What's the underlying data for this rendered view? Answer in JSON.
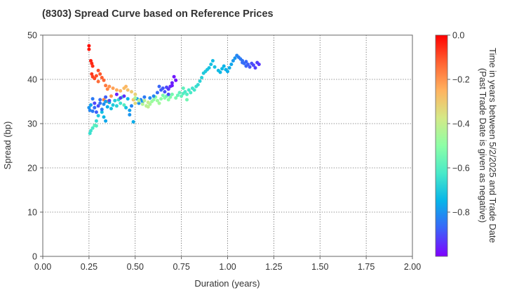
{
  "chart_data": {
    "type": "scatter",
    "title": "(8303)   Spread Curve based on Reference Prices",
    "xlabel": "Duration (years)",
    "ylabel": "Spread (bp)",
    "xlim": [
      0,
      2.0
    ],
    "ylim": [
      0,
      50
    ],
    "x_ticks": [
      "0.00",
      "0.25",
      "0.50",
      "0.75",
      "1.00",
      "1.25",
      "1.50",
      "1.75",
      "2.00"
    ],
    "y_ticks": [
      "0",
      "10",
      "20",
      "30",
      "40",
      "50"
    ],
    "grid": true,
    "colorbar": {
      "label_line1": "Time in years between 5/2/2025 and Trade Date",
      "label_line2": "(Past Trade Date is given as negative)",
      "range": [
        -1.0,
        0.0
      ],
      "ticks": [
        "0.0",
        "−0.2",
        "−0.4",
        "−0.6",
        "−0.8"
      ],
      "tick_values": [
        0.0,
        -0.2,
        -0.4,
        -0.6,
        -0.8
      ],
      "colormap": "rainbow",
      "stops": [
        "#7f00ff",
        "#3b63f9",
        "#07b4e9",
        "#48e9c9",
        "#8cffa6",
        "#d4e987",
        "#ffb360",
        "#ff6332",
        "#ff0000"
      ]
    },
    "points": [
      [
        0.25,
        47.6,
        -0.02
      ],
      [
        0.25,
        46.8,
        -0.03
      ],
      [
        0.26,
        44.2,
        -0.04
      ],
      [
        0.265,
        43.6,
        -0.05
      ],
      [
        0.27,
        43.0,
        -0.06
      ],
      [
        0.265,
        41.2,
        -0.07
      ],
      [
        0.27,
        40.6,
        -0.08
      ],
      [
        0.28,
        40.2,
        -0.09
      ],
      [
        0.29,
        40.8,
        -0.1
      ],
      [
        0.3,
        42.0,
        -0.1
      ],
      [
        0.31,
        41.2,
        -0.11
      ],
      [
        0.32,
        40.4,
        -0.12
      ],
      [
        0.33,
        39.8,
        -0.13
      ],
      [
        0.3,
        39.5,
        -0.14
      ],
      [
        0.34,
        38.6,
        -0.16
      ],
      [
        0.35,
        37.8,
        -0.18
      ],
      [
        0.36,
        38.4,
        -0.2
      ],
      [
        0.38,
        38.0,
        -0.22
      ],
      [
        0.4,
        37.6,
        -0.24
      ],
      [
        0.42,
        37.4,
        -0.25
      ],
      [
        0.44,
        38.0,
        -0.27
      ],
      [
        0.45,
        38.4,
        -0.26
      ],
      [
        0.46,
        37.6,
        -0.28
      ],
      [
        0.48,
        37.2,
        -0.3
      ],
      [
        0.5,
        36.6,
        -0.32
      ],
      [
        0.49,
        35.4,
        -0.3
      ],
      [
        0.5,
        34.6,
        -0.34
      ],
      [
        0.37,
        36.2,
        -0.2
      ],
      [
        0.33,
        35.4,
        -0.17
      ],
      [
        0.35,
        35.0,
        -0.21
      ],
      [
        0.28,
        29.6,
        -0.58
      ],
      [
        0.29,
        29.5,
        -0.6
      ],
      [
        0.27,
        29.0,
        -0.62
      ],
      [
        0.26,
        28.4,
        -0.64
      ],
      [
        0.255,
        27.8,
        -0.65
      ],
      [
        0.29,
        30.6,
        -0.66
      ],
      [
        0.3,
        31.8,
        -0.7
      ],
      [
        0.32,
        32.6,
        -0.72
      ],
      [
        0.33,
        31.5,
        -0.74
      ],
      [
        0.34,
        30.6,
        -0.77
      ],
      [
        0.25,
        33.6,
        -0.8
      ],
      [
        0.255,
        33.0,
        -0.82
      ],
      [
        0.26,
        34.2,
        -0.78
      ],
      [
        0.27,
        32.8,
        -0.84
      ],
      [
        0.28,
        33.6,
        -0.86
      ],
      [
        0.29,
        32.6,
        -0.88
      ],
      [
        0.3,
        34.0,
        -0.9
      ],
      [
        0.31,
        34.6,
        -0.85
      ],
      [
        0.32,
        33.2,
        -0.83
      ],
      [
        0.33,
        34.4,
        -0.81
      ],
      [
        0.34,
        35.0,
        -0.78
      ],
      [
        0.35,
        33.8,
        -0.76
      ],
      [
        0.36,
        34.8,
        -0.74
      ],
      [
        0.37,
        33.4,
        -0.72
      ],
      [
        0.38,
        34.2,
        -0.7
      ],
      [
        0.39,
        35.2,
        -0.69
      ],
      [
        0.4,
        34.0,
        -0.68
      ],
      [
        0.41,
        35.4,
        -0.66
      ],
      [
        0.42,
        34.6,
        -0.64
      ],
      [
        0.43,
        36.0,
        -0.62
      ],
      [
        0.44,
        34.2,
        -0.6
      ],
      [
        0.45,
        33.6,
        -0.72
      ],
      [
        0.46,
        35.6,
        -0.75
      ],
      [
        0.47,
        33.0,
        -0.78
      ],
      [
        0.48,
        34.0,
        -0.82
      ],
      [
        0.49,
        30.4,
        -0.76
      ],
      [
        0.47,
        32.0,
        -0.8
      ],
      [
        0.42,
        35.8,
        -0.92
      ],
      [
        0.44,
        36.2,
        -0.94
      ],
      [
        0.4,
        36.6,
        -0.96
      ],
      [
        0.36,
        35.2,
        -0.9
      ],
      [
        0.34,
        36.0,
        -0.88
      ],
      [
        0.31,
        35.4,
        -0.86
      ],
      [
        0.28,
        34.6,
        -0.91
      ],
      [
        0.27,
        35.6,
        -0.84
      ],
      [
        0.51,
        35.6,
        -0.78
      ],
      [
        0.52,
        34.6,
        -0.8
      ],
      [
        0.53,
        35.4,
        -0.82
      ],
      [
        0.54,
        35.0,
        -0.79
      ],
      [
        0.55,
        36.0,
        -0.84
      ],
      [
        0.5,
        35.8,
        -0.45
      ],
      [
        0.52,
        35.2,
        -0.44
      ],
      [
        0.54,
        34.4,
        -0.43
      ],
      [
        0.56,
        34.0,
        -0.42
      ],
      [
        0.57,
        33.8,
        -0.41
      ],
      [
        0.58,
        34.4,
        -0.45
      ],
      [
        0.59,
        35.0,
        -0.47
      ],
      [
        0.6,
        35.4,
        -0.49
      ],
      [
        0.61,
        36.0,
        -0.5
      ],
      [
        0.62,
        35.2,
        -0.47
      ],
      [
        0.63,
        34.6,
        -0.46
      ],
      [
        0.64,
        35.6,
        -0.5
      ],
      [
        0.65,
        36.4,
        -0.53
      ],
      [
        0.66,
        35.8,
        -0.51
      ],
      [
        0.67,
        36.2,
        -0.55
      ],
      [
        0.68,
        35.4,
        -0.5
      ],
      [
        0.69,
        36.0,
        -0.52
      ],
      [
        0.7,
        36.6,
        -0.54
      ],
      [
        0.72,
        35.8,
        -0.53
      ],
      [
        0.73,
        36.4,
        -0.56
      ],
      [
        0.74,
        37.0,
        -0.58
      ],
      [
        0.75,
        36.2,
        -0.57
      ],
      [
        0.76,
        36.8,
        -0.6
      ],
      [
        0.77,
        37.2,
        -0.62
      ],
      [
        0.78,
        36.6,
        -0.6
      ],
      [
        0.79,
        37.6,
        -0.63
      ],
      [
        0.8,
        37.0,
        -0.62
      ],
      [
        0.81,
        38.0,
        -0.64
      ],
      [
        0.82,
        37.6,
        -0.63
      ],
      [
        0.83,
        38.4,
        -0.65
      ],
      [
        0.84,
        38.8,
        -0.66
      ],
      [
        0.85,
        39.6,
        -0.68
      ],
      [
        0.86,
        40.4,
        -0.68
      ],
      [
        0.87,
        41.4,
        -0.7
      ],
      [
        0.88,
        41.8,
        -0.7
      ],
      [
        0.89,
        42.2,
        -0.71
      ],
      [
        0.9,
        42.6,
        -0.72
      ],
      [
        0.91,
        43.4,
        -0.72
      ],
      [
        0.92,
        44.2,
        -0.73
      ],
      [
        0.93,
        42.8,
        -0.72
      ],
      [
        0.95,
        42.0,
        -0.73
      ],
      [
        0.96,
        41.6,
        -0.74
      ],
      [
        0.97,
        42.4,
        -0.74
      ],
      [
        0.98,
        43.0,
        -0.75
      ],
      [
        0.99,
        42.2,
        -0.75
      ],
      [
        1.0,
        41.8,
        -0.76
      ],
      [
        1.01,
        42.6,
        -0.76
      ],
      [
        1.02,
        43.4,
        -0.77
      ],
      [
        1.03,
        44.2,
        -0.79
      ],
      [
        1.04,
        44.8,
        -0.8
      ],
      [
        1.05,
        45.4,
        -0.82
      ],
      [
        1.06,
        45.0,
        -0.83
      ],
      [
        1.07,
        44.6,
        -0.84
      ],
      [
        1.08,
        44.2,
        -0.85
      ],
      [
        1.09,
        43.6,
        -0.86
      ],
      [
        1.1,
        43.0,
        -0.87
      ],
      [
        1.11,
        43.4,
        -0.88
      ],
      [
        1.12,
        42.8,
        -0.89
      ],
      [
        1.13,
        43.6,
        -0.9
      ],
      [
        1.14,
        43.2,
        -0.91
      ],
      [
        1.15,
        42.6,
        -0.92
      ],
      [
        1.16,
        43.8,
        -0.92
      ],
      [
        1.17,
        43.4,
        -0.93
      ],
      [
        1.1,
        44.0,
        -0.87
      ],
      [
        1.08,
        43.8,
        -0.86
      ],
      [
        0.62,
        37.0,
        -0.86
      ],
      [
        0.63,
        38.4,
        -0.87
      ],
      [
        0.64,
        37.6,
        -0.88
      ],
      [
        0.65,
        38.0,
        -0.89
      ],
      [
        0.66,
        37.2,
        -0.9
      ],
      [
        0.67,
        38.2,
        -0.91
      ],
      [
        0.68,
        37.8,
        -0.93
      ],
      [
        0.69,
        38.4,
        -0.95
      ],
      [
        0.7,
        39.2,
        -0.96
      ],
      [
        0.71,
        40.6,
        -0.97
      ],
      [
        0.72,
        39.8,
        -0.98
      ],
      [
        0.7,
        38.6,
        -0.97
      ],
      [
        0.68,
        36.6,
        -0.9
      ],
      [
        0.6,
        36.2,
        -0.82
      ],
      [
        0.58,
        35.8,
        -0.81
      ],
      [
        0.78,
        35.4,
        -0.55
      ],
      [
        0.76,
        38.0,
        -0.58
      ],
      [
        0.57,
        34.8,
        -0.4
      ],
      [
        0.55,
        35.2,
        -0.43
      ]
    ]
  }
}
